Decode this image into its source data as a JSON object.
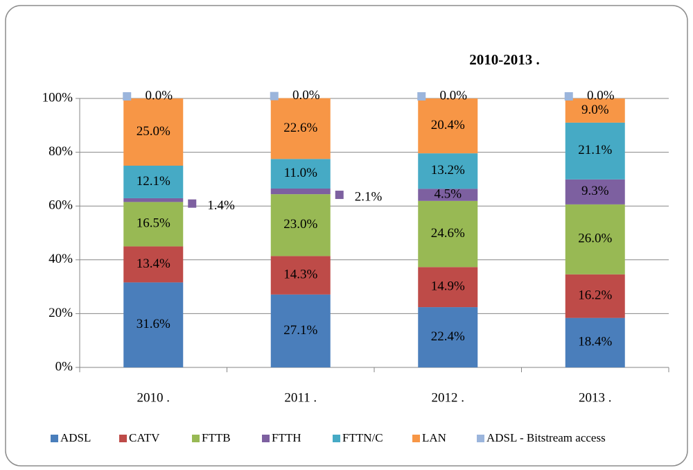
{
  "chart_data": {
    "type": "stacked-bar",
    "title": "2010-2013 .",
    "categories": [
      "2010 .",
      "2011 .",
      "2012 .",
      "2013 ."
    ],
    "series": [
      {
        "name": "ADSL",
        "color": "#4a7ebb",
        "values": [
          31.6,
          27.1,
          22.4,
          18.4
        ],
        "value_labels": [
          "31.6%",
          "27.1%",
          "22.4%",
          "18.4%"
        ]
      },
      {
        "name": "CATV",
        "color": "#be4b48",
        "values": [
          13.4,
          14.3,
          14.9,
          16.2
        ],
        "value_labels": [
          "13.4%",
          "14.3%",
          "14.9%",
          "16.2%"
        ]
      },
      {
        "name": "FTTB",
        "color": "#98b954",
        "values": [
          16.5,
          23.0,
          24.6,
          26.0
        ],
        "value_labels": [
          "16.5%",
          "23.0%",
          "24.6%",
          "26.0%"
        ]
      },
      {
        "name": "FTTH",
        "color": "#7d60a0",
        "values": [
          1.4,
          2.1,
          4.5,
          9.3
        ],
        "value_labels": [
          "1.4%",
          "2.1%",
          "4.5%",
          "9.3%"
        ]
      },
      {
        "name": "FTTN/C",
        "color": "#46aac5",
        "values": [
          12.1,
          11.0,
          13.2,
          21.1
        ],
        "value_labels": [
          "12.1%",
          "11.0%",
          "13.2%",
          "21.1%"
        ]
      },
      {
        "name": "LAN",
        "color": "#f79646",
        "values": [
          25.0,
          22.6,
          20.4,
          9.0
        ],
        "value_labels": [
          "25.0%",
          "22.6%",
          "20.4%",
          "9.0%"
        ]
      },
      {
        "name": "ADSL - Bitstream access",
        "color": "#9bb5dc",
        "values": [
          0,
          0,
          0,
          0
        ],
        "value_labels": [
          "0.0%",
          "0.0%",
          "0.0%",
          "0.0%"
        ]
      }
    ],
    "ylim": [
      0,
      100
    ],
    "yticks": [
      {
        "value": 0,
        "label": "0%"
      },
      {
        "value": 20,
        "label": "20%"
      },
      {
        "value": 40,
        "label": "40%"
      },
      {
        "value": 60,
        "label": "60%"
      },
      {
        "value": 80,
        "label": "80%"
      },
      {
        "value": 100,
        "label": "100%"
      }
    ],
    "grid": true,
    "legend": "bottom"
  }
}
